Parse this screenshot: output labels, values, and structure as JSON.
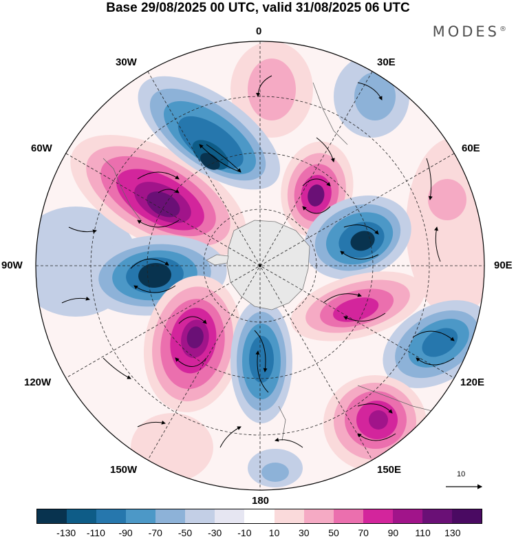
{
  "title": "Base 29/08/2025 00 UTC, valid 31/08/2025 06 UTC",
  "brand": "MODES",
  "brand_mark": "®",
  "meridian_labels": {
    "lon_0": "0",
    "lon_30e": "30E",
    "lon_60e": "60E",
    "lon_90e": "90E",
    "lon_120e": "120E",
    "lon_150e": "150E",
    "lon_180": "180",
    "lon_150w": "150W",
    "lon_120w": "120W",
    "lon_90w": "90W",
    "lon_60w": "60W",
    "lon_30w": "30W"
  },
  "reference_vector": {
    "label": "10"
  },
  "colorbar": {
    "tick_labels": [
      "-130",
      "-110",
      "-90",
      "-70",
      "-50",
      "-30",
      "-10",
      "10",
      "30",
      "50",
      "70",
      "90",
      "110",
      "130"
    ],
    "colors": [
      "#08334f",
      "#0e5c87",
      "#2677ad",
      "#4c98c7",
      "#8db2d8",
      "#c3cfe6",
      "#e6e6f2",
      "#ffffff",
      "#fadadb",
      "#f5aac4",
      "#eb6fae",
      "#d3259c",
      "#a1148a",
      "#6a1076",
      "#4a0a62"
    ]
  },
  "map_data": {
    "colors": {
      "ocean_neutral": "#ffffff",
      "antarctica": "#e8e8e8",
      "pos_light": "#fadadb",
      "pos_mid": "#f5aac4",
      "pos_strong": "#eb6fae",
      "pos_deep": "#d3259c",
      "pos_max": "#6a1076",
      "neg_light": "#c3cfe6",
      "neg_mid": "#8db2d8",
      "neg_strong": "#4c98c7",
      "neg_deep": "#0e5c87",
      "neg_max": "#08334f"
    }
  }
}
